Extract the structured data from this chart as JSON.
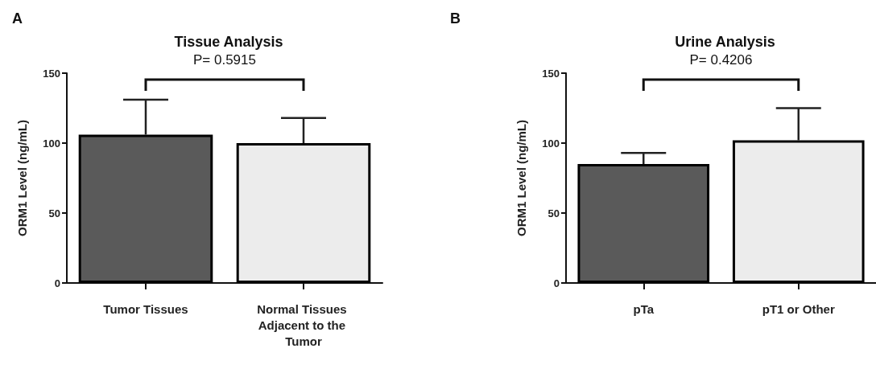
{
  "chart_data": [
    {
      "type": "bar",
      "title": "Tissue Analysis",
      "ylabel": "ORM1 Level (ng/mL)",
      "categories": [
        "Tumor Tissues",
        "Normal Tissues Adjacent to the Tumor"
      ],
      "values": [
        106,
        100
      ],
      "colors": [
        "#5a5a5a",
        "#ececec"
      ],
      "errors": [
        [
          106,
          131
        ],
        [
          100,
          118
        ]
      ],
      "ylim": [
        0,
        150
      ],
      "yticks": [
        0,
        50,
        100,
        150
      ],
      "annotations": [
        "A",
        "P= 0.5915"
      ]
    },
    {
      "type": "bar",
      "title": "Urine Analysis",
      "ylabel": "ORM1 Level (ng/mL)",
      "categories": [
        "pTa",
        "pT1 or Other"
      ],
      "values": [
        85,
        102
      ],
      "colors": [
        "#5a5a5a",
        "#ececec"
      ],
      "errors": [
        [
          85,
          93
        ],
        [
          102,
          125
        ]
      ],
      "ylim": [
        0,
        150
      ],
      "yticks": [
        0,
        50,
        100,
        150
      ],
      "annotations": [
        "B",
        "P= 0.4206"
      ]
    }
  ]
}
